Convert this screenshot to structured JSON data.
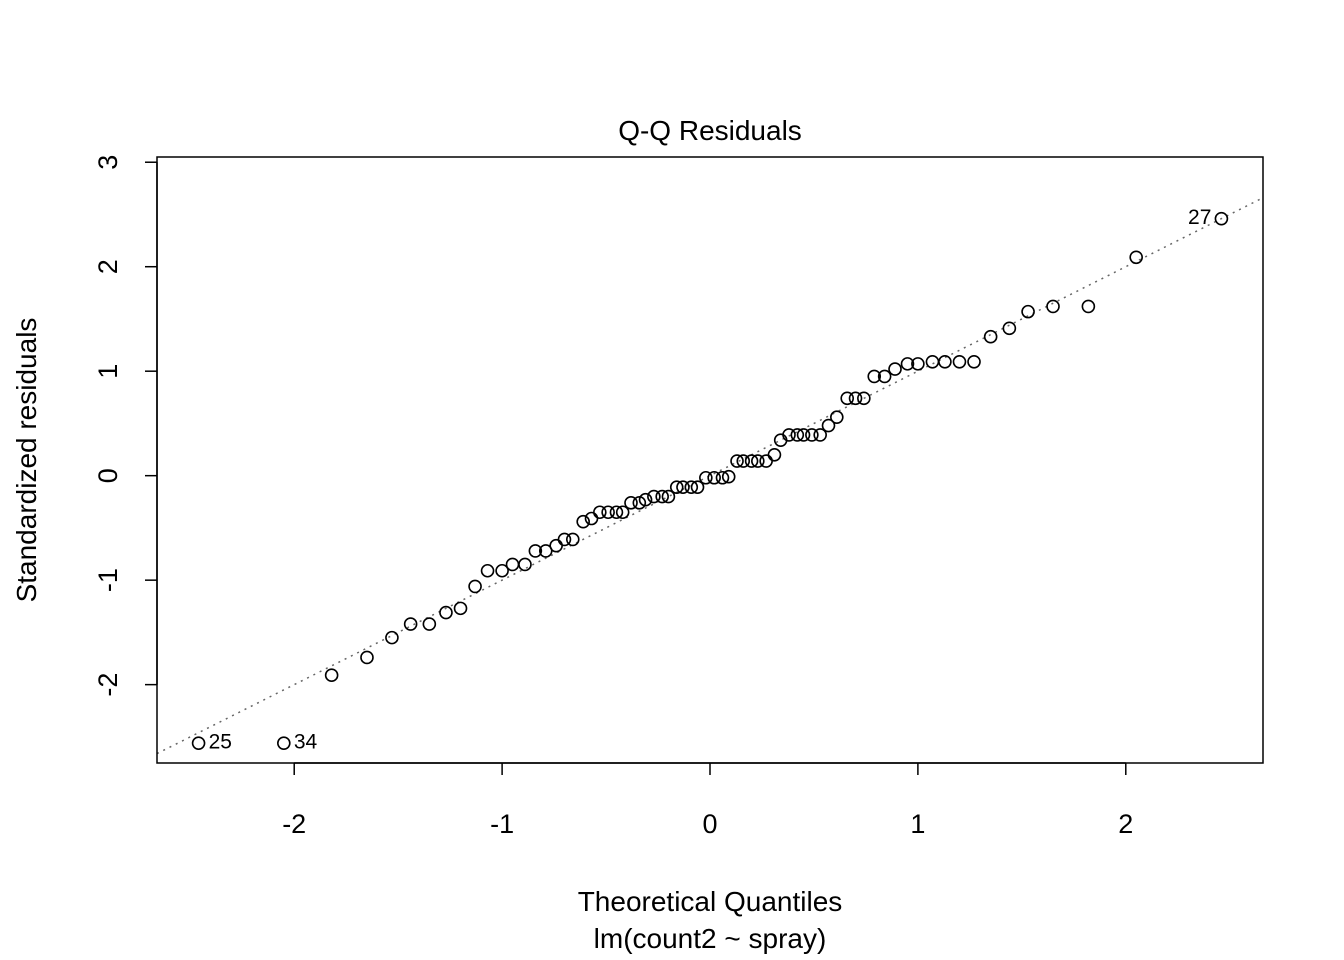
{
  "chart_data": {
    "type": "scatter",
    "title": "Q-Q Residuals",
    "xlabel": "Theoretical Quantiles",
    "subtitle": "lm(count2 ~ spray)",
    "ylabel": "Standardized residuals",
    "xlim": [
      -2.66,
      2.66
    ],
    "ylim": [
      -2.75,
      3.05
    ],
    "xticks": [
      -2,
      -1,
      0,
      1,
      2
    ],
    "yticks": [
      -2,
      -1,
      0,
      1,
      2,
      3
    ],
    "xtick_labels": [
      "-2",
      "-1",
      "0",
      "1",
      "2"
    ],
    "ytick_labels": [
      "-2",
      "-1",
      "0",
      "1",
      "2",
      "3"
    ],
    "grid": false,
    "reference_line": {
      "slope": 1.0,
      "intercept": 0.0,
      "style": "dotted",
      "color": "#666666"
    },
    "marker": {
      "shape": "open-circle",
      "color": "#000000"
    },
    "series": [
      {
        "x": [
          -2.46,
          -2.05,
          -1.82,
          -1.65,
          -1.53,
          -1.44,
          -1.35,
          -1.27,
          -1.2,
          -1.13,
          -1.07,
          -1.0,
          -0.95,
          -0.89,
          -0.84,
          -0.79,
          -0.74,
          -0.7,
          -0.66,
          -0.61,
          -0.57,
          -0.53,
          -0.49,
          -0.45,
          -0.42,
          -0.38,
          -0.34,
          -0.31,
          -0.27,
          -0.23,
          -0.2,
          -0.16,
          -0.13,
          -0.09,
          -0.06,
          -0.02,
          0.02,
          0.06,
          0.09,
          0.13,
          0.16,
          0.2,
          0.23,
          0.27,
          0.31,
          0.34,
          0.38,
          0.42,
          0.45,
          0.49,
          0.53,
          0.57,
          0.61,
          0.66,
          0.7,
          0.74,
          0.79,
          0.84,
          0.89,
          0.95,
          1.0,
          1.07,
          1.13,
          1.2,
          1.27,
          1.35,
          1.44,
          1.53,
          1.65,
          1.82,
          2.05,
          2.46
        ],
        "y": [
          -2.56,
          -2.56,
          -1.91,
          -1.74,
          -1.55,
          -1.42,
          -1.42,
          -1.31,
          -1.27,
          -1.06,
          -0.91,
          -0.91,
          -0.85,
          -0.85,
          -0.72,
          -0.72,
          -0.67,
          -0.61,
          -0.61,
          -0.44,
          -0.41,
          -0.35,
          -0.35,
          -0.35,
          -0.35,
          -0.26,
          -0.26,
          -0.23,
          -0.2,
          -0.2,
          -0.2,
          -0.11,
          -0.11,
          -0.11,
          -0.11,
          -0.02,
          -0.02,
          -0.02,
          -0.01,
          0.14,
          0.14,
          0.14,
          0.14,
          0.14,
          0.2,
          0.34,
          0.39,
          0.39,
          0.39,
          0.39,
          0.39,
          0.48,
          0.56,
          0.74,
          0.74,
          0.74,
          0.95,
          0.95,
          1.02,
          1.07,
          1.07,
          1.09,
          1.09,
          1.09,
          1.09,
          1.33,
          1.41,
          1.57,
          1.62,
          1.62,
          2.09,
          2.46
        ]
      }
    ],
    "annotations": [
      {
        "text": "25",
        "x": -2.46,
        "y": -2.56,
        "side": "right"
      },
      {
        "text": "34",
        "x": -2.05,
        "y": -2.56,
        "side": "right"
      },
      {
        "text": "27",
        "x": 2.46,
        "y": 2.46,
        "side": "left"
      }
    ]
  }
}
